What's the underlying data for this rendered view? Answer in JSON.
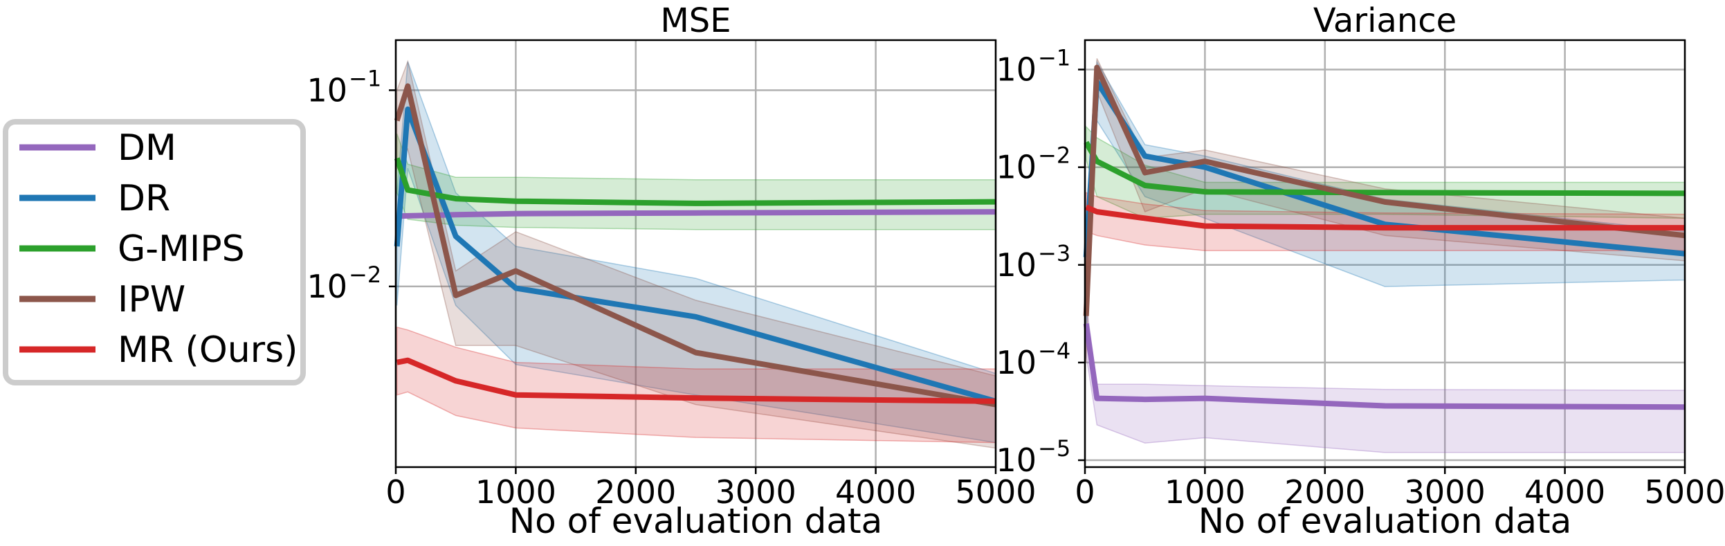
{
  "colors": {
    "DM": "#9467bd",
    "DR": "#1f77b4",
    "G-MIPS": "#2ca02c",
    "IPW": "#8c564b",
    "MR (Ours)": "#d62728"
  },
  "legend": {
    "placement": "left-outside",
    "entries": [
      "DM",
      "DR",
      "G-MIPS",
      "IPW",
      "MR (Ours)"
    ]
  },
  "chart_data": [
    {
      "type": "line",
      "title": "MSE",
      "xlabel": "No of evaluation data",
      "ylabel": "",
      "xlim": [
        0,
        5000
      ],
      "ylim": [
        0.0012,
        0.18
      ],
      "yscale": "log",
      "grid": true,
      "x_ticks": [
        "0",
        "1000",
        "2000",
        "3000",
        "4000",
        "5000"
      ],
      "y_ticks": [
        {
          "base": "10",
          "exp": "−1",
          "value": 0.1
        },
        {
          "base": "10",
          "exp": "−2",
          "value": 0.01
        }
      ],
      "x": [
        10,
        100,
        500,
        1000,
        2500,
        5000
      ],
      "series": [
        {
          "name": "DM",
          "values": [
            0.0228,
            0.0229,
            0.0232,
            0.0235,
            0.0237,
            0.024
          ],
          "lower": [
            0.0226,
            0.0227,
            0.023,
            0.0233,
            0.0235,
            0.0238
          ],
          "upper": [
            0.023,
            0.0231,
            0.0234,
            0.0237,
            0.0239,
            0.0242
          ]
        },
        {
          "name": "DR",
          "values": [
            0.016,
            0.08,
            0.018,
            0.0098,
            0.007,
            0.0026
          ],
          "lower": [
            0.008,
            0.04,
            0.008,
            0.004,
            0.0028,
            0.0016
          ],
          "upper": [
            0.03,
            0.14,
            0.03,
            0.016,
            0.011,
            0.0036
          ]
        },
        {
          "name": "G-MIPS",
          "values": [
            0.045,
            0.031,
            0.028,
            0.0272,
            0.0265,
            0.027
          ],
          "lower": [
            0.03,
            0.022,
            0.0205,
            0.02,
            0.0195,
            0.0195
          ],
          "upper": [
            0.06,
            0.042,
            0.036,
            0.036,
            0.035,
            0.035
          ]
        },
        {
          "name": "IPW",
          "values": [
            0.07,
            0.105,
            0.009,
            0.012,
            0.0046,
            0.0025
          ],
          "lower": [
            0.04,
            0.05,
            0.005,
            0.005,
            0.0025,
            0.0015
          ],
          "upper": [
            0.1,
            0.14,
            0.012,
            0.019,
            0.0085,
            0.0035
          ]
        },
        {
          "name": "MR (Ours)",
          "values": [
            0.0041,
            0.0042,
            0.0033,
            0.0028,
            0.0027,
            0.0026
          ],
          "lower": [
            0.0028,
            0.0029,
            0.0022,
            0.0019,
            0.0017,
            0.0016
          ],
          "upper": [
            0.0062,
            0.006,
            0.0049,
            0.0041,
            0.0038,
            0.0038
          ]
        }
      ]
    },
    {
      "type": "line",
      "title": "Variance",
      "xlabel": "No of evaluation data",
      "ylabel": "",
      "xlim": [
        0,
        5000
      ],
      "ylim": [
        8.5e-06,
        0.2
      ],
      "yscale": "log",
      "grid": true,
      "x_ticks": [
        "0",
        "1000",
        "2000",
        "3000",
        "4000",
        "5000"
      ],
      "y_ticks": [
        {
          "base": "10",
          "exp": "−1",
          "value": 0.1
        },
        {
          "base": "10",
          "exp": "−2",
          "value": 0.01
        },
        {
          "base": "10",
          "exp": "−3",
          "value": 0.001
        },
        {
          "base": "10",
          "exp": "−4",
          "value": 0.0001
        },
        {
          "base": "10",
          "exp": "−5",
          "value": 1e-05
        }
      ],
      "x": [
        10,
        100,
        500,
        1000,
        2500,
        5000
      ],
      "series": [
        {
          "name": "DM",
          "values": [
            0.00025,
            4.3e-05,
            4.2e-05,
            4.3e-05,
            3.6e-05,
            3.5e-05
          ],
          "lower": [
            0.00012,
            2.3e-05,
            1.5e-05,
            1.7e-05,
            1.2e-05,
            1.2e-05
          ],
          "upper": [
            0.0004,
            6e-05,
            6e-05,
            5.8e-05,
            5.3e-05,
            5.2e-05
          ]
        },
        {
          "name": "DR",
          "values": [
            0.0012,
            0.075,
            0.013,
            0.01,
            0.0026,
            0.0013
          ],
          "lower": [
            0.0002,
            0.03,
            0.005,
            0.003,
            0.0006,
            0.0007
          ],
          "upper": [
            0.003,
            0.12,
            0.017,
            0.013,
            0.0047,
            0.0022
          ]
        },
        {
          "name": "G-MIPS",
          "values": [
            0.018,
            0.0115,
            0.0065,
            0.0056,
            0.0055,
            0.0054
          ],
          "lower": [
            0.012,
            0.005,
            0.003,
            0.0033,
            0.0033,
            0.003
          ],
          "upper": [
            0.026,
            0.02,
            0.0105,
            0.007,
            0.007,
            0.007
          ]
        },
        {
          "name": "IPW",
          "values": [
            0.0003,
            0.105,
            0.0088,
            0.0115,
            0.0044,
            0.002
          ],
          "lower": [
            0.0001,
            0.06,
            0.0035,
            0.006,
            0.002,
            0.0011
          ],
          "upper": [
            0.001,
            0.13,
            0.0125,
            0.015,
            0.006,
            0.003
          ]
        },
        {
          "name": "MR (Ours)",
          "values": [
            0.0039,
            0.0035,
            0.003,
            0.0025,
            0.0024,
            0.0024
          ],
          "lower": [
            0.0022,
            0.002,
            0.0016,
            0.0014,
            0.0014,
            0.0014
          ],
          "upper": [
            0.0055,
            0.005,
            0.0042,
            0.0036,
            0.0034,
            0.0033
          ]
        }
      ]
    }
  ]
}
